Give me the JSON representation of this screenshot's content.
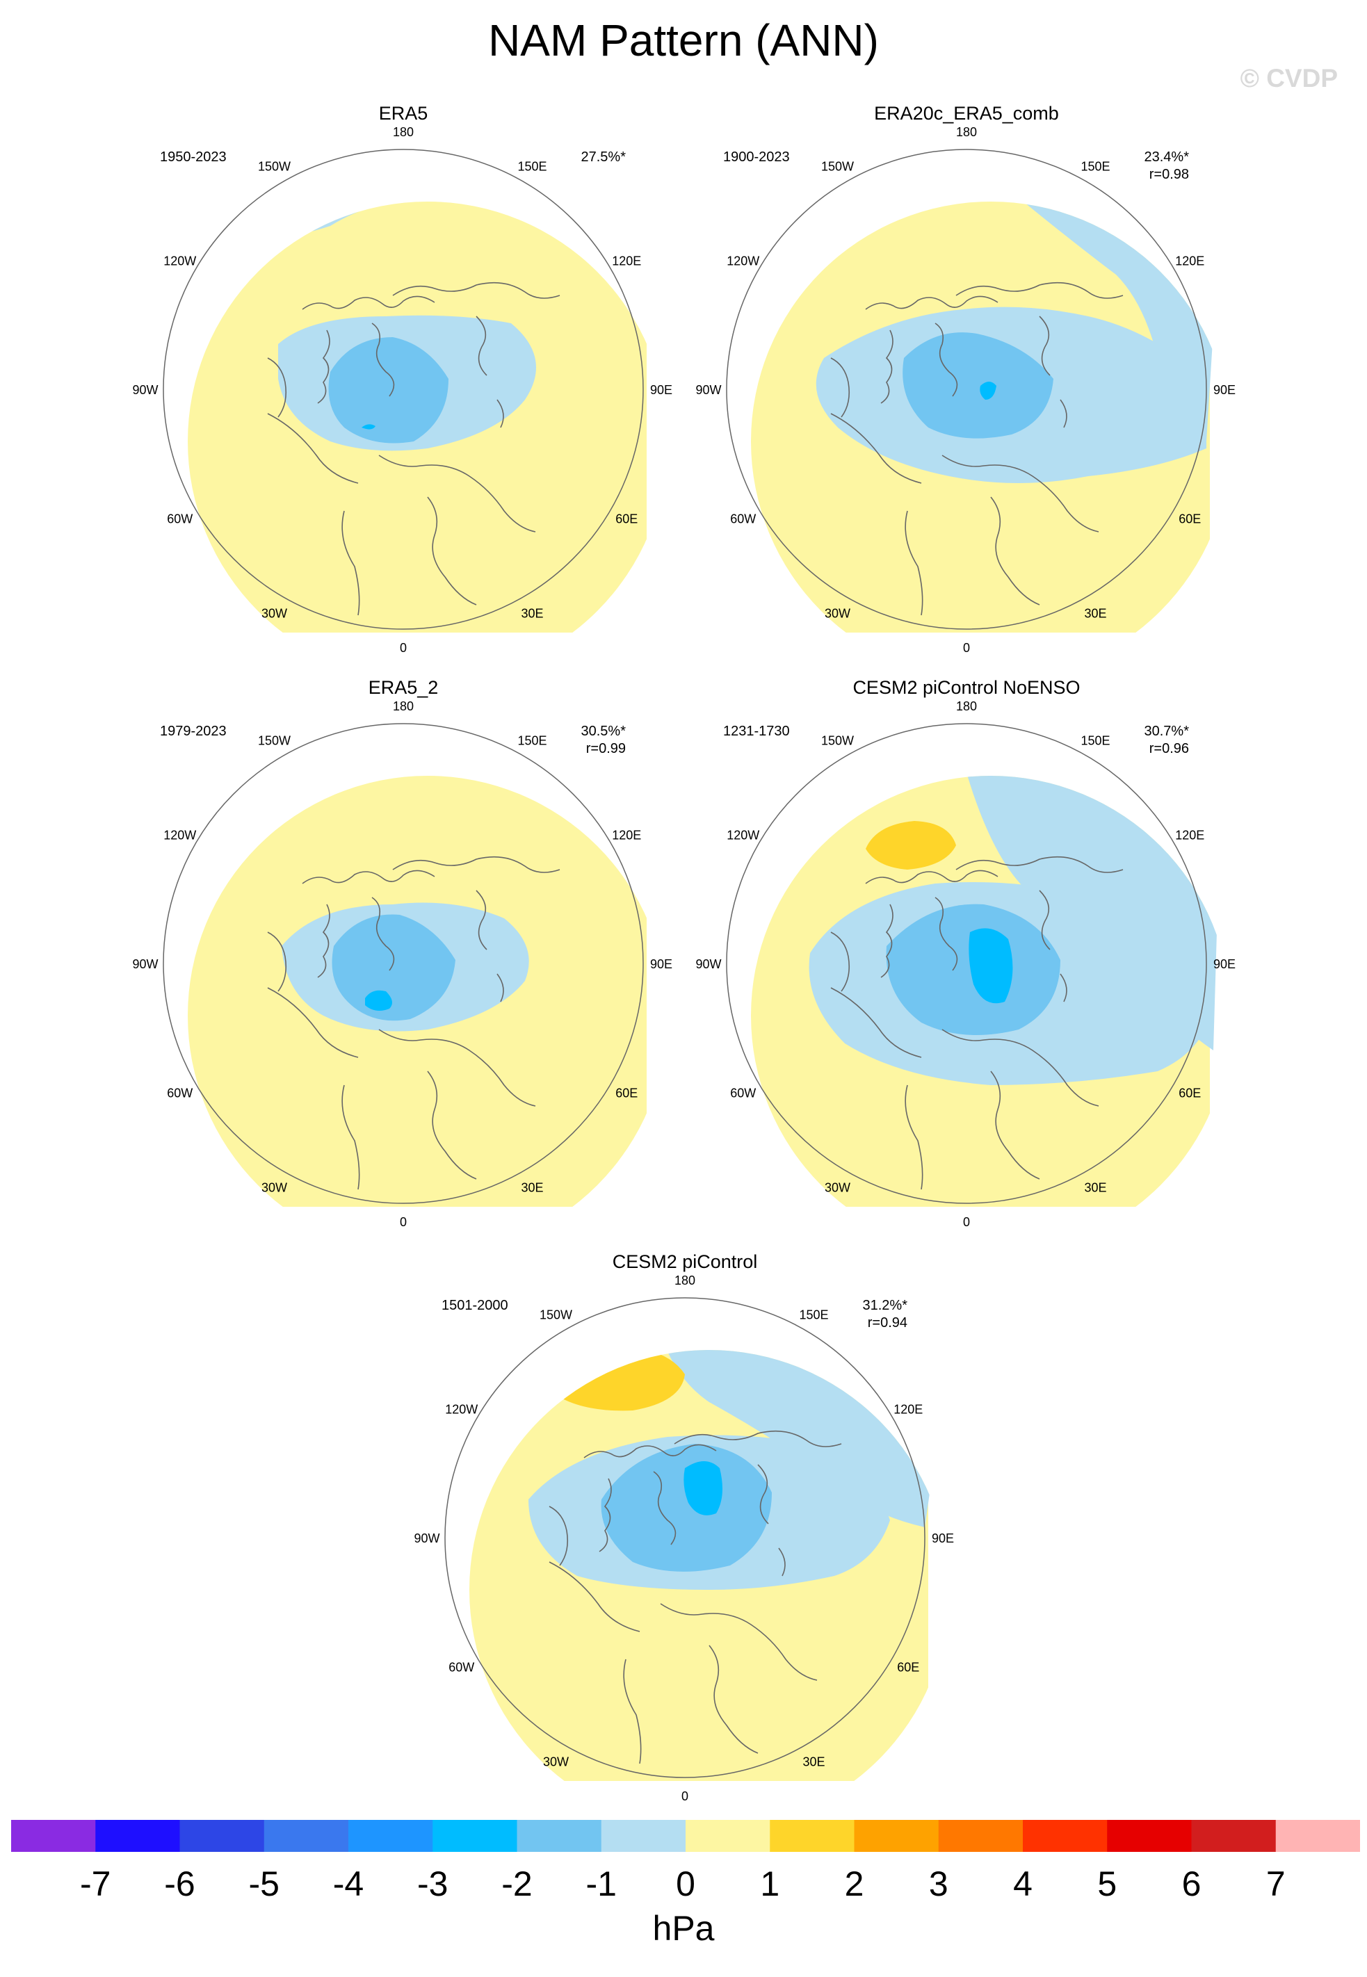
{
  "figure": {
    "title": "NAM Pattern (ANN)",
    "credit": "© CVDP",
    "units": "hPa"
  },
  "colors": {
    "lt_neg1": "#b4def2",
    "neg1_neg2": "#72c5f1",
    "neg2_neg3": "#00bcff",
    "zero_pos1": "#fdf6a2",
    "pos1_pos2": "#fed52a",
    "coastline": "#666666",
    "frame": "#666666"
  },
  "lon_labels": [
    "180",
    "150E",
    "120E",
    "90E",
    "60E",
    "30E",
    "0",
    "30W",
    "60W",
    "90W",
    "120W",
    "150W"
  ],
  "panels": [
    {
      "title": "ERA5",
      "years": "1950-2023",
      "pct": "27.5%*",
      "r": ""
    },
    {
      "title": "ERA20c_ERA5_comb",
      "years": "1900-2023",
      "pct": "23.4%*",
      "r": "r=0.98"
    },
    {
      "title": "ERA5_2",
      "years": "1979-2023",
      "pct": "30.5%*",
      "r": "r=0.99"
    },
    {
      "title": "CESM2 piControl NoENSO",
      "years": "1231-1730",
      "pct": "30.7%*",
      "r": "r=0.96"
    },
    {
      "title": "CESM2 piControl",
      "years": "1501-2000",
      "pct": "31.2%*",
      "r": "r=0.94"
    }
  ],
  "colorbar": {
    "ticks": [
      "-7",
      "-6",
      "-5",
      "-4",
      "-3",
      "-2",
      "-1",
      "0",
      "1",
      "2",
      "3",
      "4",
      "5",
      "6",
      "7"
    ],
    "colors": [
      "#8a2be2",
      "#1e0fff",
      "#2d46e6",
      "#3a78ee",
      "#1e95ff",
      "#00bcff",
      "#72c5f1",
      "#b4def2",
      "#fdf6a2",
      "#fed52a",
      "#fea200",
      "#ff7800",
      "#ff3200",
      "#e60000",
      "#d21e1e",
      "#ffb4b4"
    ]
  }
}
